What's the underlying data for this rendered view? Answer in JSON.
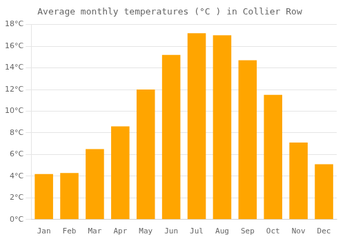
{
  "chart_data": {
    "type": "bar",
    "title": "Average monthly temperatures (°C ) in Collier Row",
    "categories": [
      "Jan",
      "Feb",
      "Mar",
      "Apr",
      "May",
      "Jun",
      "Jul",
      "Aug",
      "Sep",
      "Oct",
      "Nov",
      "Dec"
    ],
    "values": [
      4.2,
      4.3,
      6.5,
      8.6,
      12.0,
      15.2,
      17.2,
      17.0,
      14.7,
      11.5,
      7.1,
      5.1
    ],
    "color": "#FFA500",
    "ylim": [
      0,
      18
    ],
    "yticks": [
      {
        "value": 0,
        "label": "0°C"
      },
      {
        "value": 2,
        "label": "2°C"
      },
      {
        "value": 4,
        "label": "4°C"
      },
      {
        "value": 6,
        "label": "6°C"
      },
      {
        "value": 8,
        "label": "8°C"
      },
      {
        "value": 10,
        "label": "10°C"
      },
      {
        "value": 12,
        "label": "12°C"
      },
      {
        "value": 14,
        "label": "14°C"
      },
      {
        "value": 16,
        "label": "16°C"
      },
      {
        "value": 18,
        "label": "18°C"
      }
    ],
    "grid": true
  }
}
